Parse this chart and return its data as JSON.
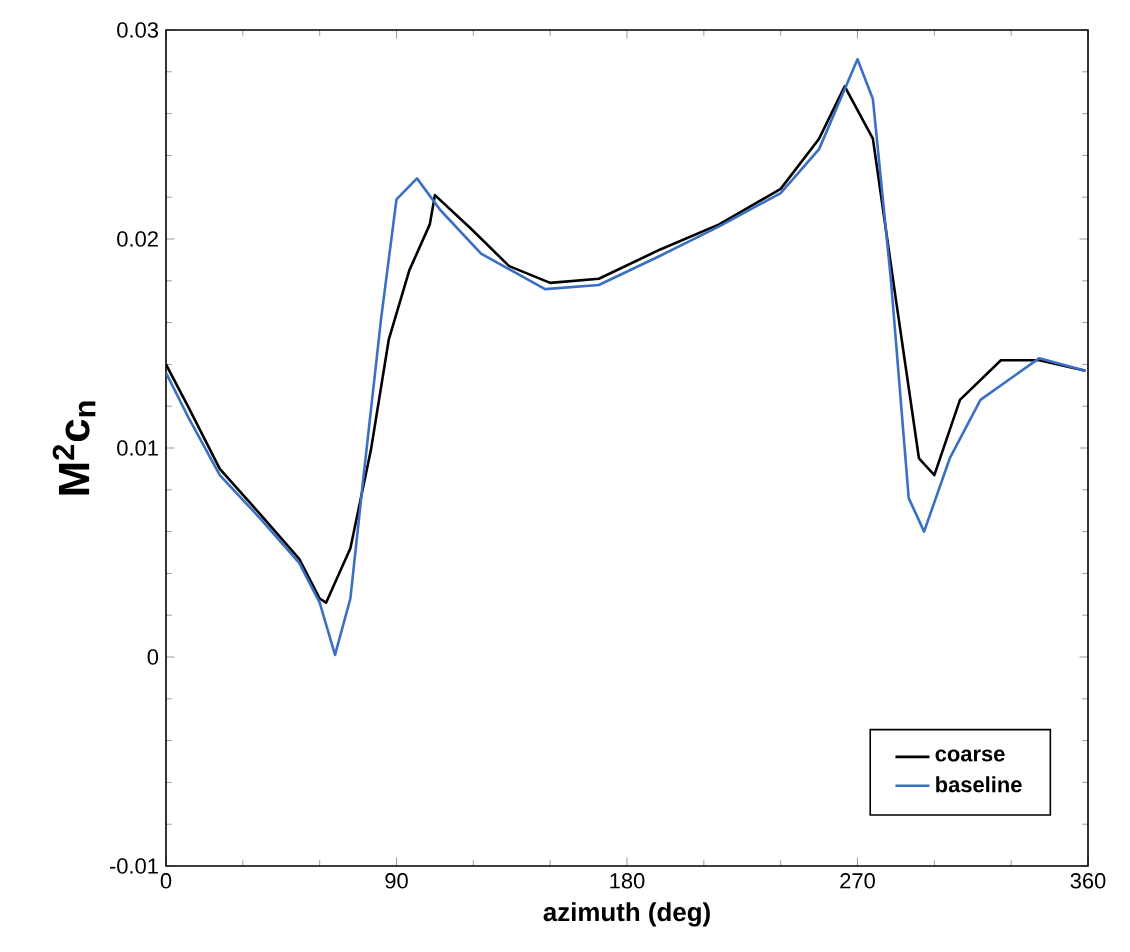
{
  "chart_data": {
    "type": "line",
    "xlabel": "azimuth (deg)",
    "ylabel": "M$^{2}$c$_{n}$",
    "xlim": [
      0,
      360
    ],
    "ylim": [
      -0.01,
      0.03
    ],
    "xticks": [
      0,
      90,
      180,
      270,
      360
    ],
    "yticks": [
      -0.01,
      0,
      0.01,
      0.02,
      0.03
    ],
    "legend": "bottom right",
    "grid": false,
    "marker": "none",
    "line_style": "solid",
    "series": [
      {
        "name": "coarse",
        "color": "#000000",
        "x": [
          0,
          9,
          21,
          37,
          52,
          60,
          62.5,
          72,
          80,
          87,
          95,
          103,
          105,
          119,
          134,
          150,
          169,
          193,
          216,
          240,
          255,
          265,
          276,
          285,
          294,
          300,
          310,
          326,
          341,
          359
        ],
        "values": [
          0.014,
          0.0119,
          0.009,
          0.0068,
          0.0047,
          0.0028,
          0.0026,
          0.0052,
          0.0099,
          0.0152,
          0.0185,
          0.0207,
          0.0221,
          0.0205,
          0.0187,
          0.0179,
          0.0181,
          0.0195,
          0.0207,
          0.0224,
          0.0248,
          0.0273,
          0.0248,
          0.0171,
          0.0095,
          0.0087,
          0.0123,
          0.0142,
          0.0142,
          0.0137
        ]
      },
      {
        "name": "baseline",
        "color": "#3a6fc4",
        "x": [
          0,
          9,
          21,
          37,
          52,
          60,
          66,
          72,
          77,
          84,
          90,
          98,
          107,
          123,
          148,
          169,
          193,
          216,
          240,
          255,
          270,
          276,
          283,
          290,
          296,
          306,
          318,
          341,
          359
        ],
        "values": [
          0.0136,
          0.0114,
          0.0087,
          0.0066,
          0.0045,
          0.0026,
          0.0001,
          0.0028,
          0.0085,
          0.0162,
          0.0219,
          0.0229,
          0.0214,
          0.0193,
          0.0176,
          0.0178,
          0.0192,
          0.0206,
          0.0222,
          0.0243,
          0.0286,
          0.0267,
          0.0181,
          0.0076,
          0.006,
          0.0095,
          0.0123,
          0.0143,
          0.0137
        ]
      }
    ]
  }
}
